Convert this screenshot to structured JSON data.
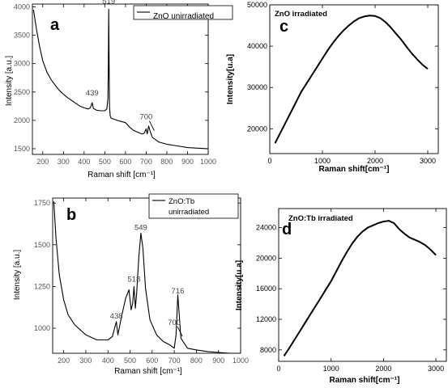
{
  "chart_data": [
    {
      "panel_letter": "a",
      "type": "line",
      "legend": "ZnO unirradiated",
      "xlabel": "Raman shift [cm⁻¹]",
      "ylabel": "Intensity [a.u.]",
      "xlim": [
        150,
        1000
      ],
      "ylim": [
        1400,
        4050
      ],
      "xticks": [
        200,
        300,
        400,
        500,
        600,
        700,
        800,
        900,
        1000
      ],
      "yticks": [
        1500,
        2000,
        2500,
        3000,
        3500,
        4000
      ],
      "annotations": [
        {
          "text": "519",
          "x": 519,
          "y": 4000
        },
        {
          "text": "439",
          "x": 439,
          "y": 2380
        },
        {
          "text": "700",
          "x": 700,
          "y": 1960
        }
      ],
      "series": [
        {
          "x": [
            155,
            170,
            185,
            200,
            220,
            240,
            260,
            280,
            300,
            320,
            340,
            360,
            380,
            400,
            420,
            430,
            439,
            445,
            460,
            480,
            500,
            510,
            515,
            517,
            519,
            521,
            523,
            526,
            530,
            545,
            560,
            580,
            600,
            620,
            640,
            660,
            680,
            690,
            700,
            705,
            712,
            720,
            730,
            760,
            800,
            850,
            900,
            950,
            1000
          ],
          "values": [
            3950,
            3600,
            3300,
            3050,
            2850,
            2720,
            2620,
            2530,
            2460,
            2400,
            2350,
            2300,
            2250,
            2220,
            2200,
            2220,
            2310,
            2210,
            2180,
            2170,
            2170,
            2200,
            2380,
            2900,
            3960,
            3000,
            2250,
            2080,
            2040,
            2020,
            2000,
            1980,
            1960,
            1880,
            1820,
            1790,
            1760,
            1770,
            1850,
            1760,
            1900,
            1800,
            1700,
            1620,
            1580,
            1550,
            1520,
            1510,
            1500
          ]
        }
      ]
    },
    {
      "panel_letter": "b",
      "type": "line",
      "legend": [
        "ZnO:Tb",
        "unirradiated"
      ],
      "xlabel": "Raman shift [cm⁻¹]",
      "ylabel": "Intensity [a.u.]",
      "xlim": [
        150,
        1000
      ],
      "ylim": [
        850,
        1780
      ],
      "xticks": [
        200,
        300,
        400,
        500,
        600,
        700,
        800,
        900,
        1000
      ],
      "yticks": [
        1000,
        1250,
        1500,
        1750
      ],
      "annotations": [
        {
          "text": "438",
          "x": 438,
          "y": 1040
        },
        {
          "text": "518",
          "x": 518,
          "y": 1260
        },
        {
          "text": "549",
          "x": 549,
          "y": 1570
        },
        {
          "text": "700",
          "x": 700,
          "y": 1000
        },
        {
          "text": "716",
          "x": 716,
          "y": 1190
        }
      ],
      "series": [
        {
          "x": [
            155,
            165,
            180,
            200,
            220,
            250,
            300,
            350,
            400,
            420,
            438,
            445,
            460,
            480,
            495,
            505,
            512,
            518,
            524,
            530,
            540,
            549,
            558,
            570,
            590,
            620,
            650,
            680,
            700,
            708,
            716,
            722,
            730,
            760,
            800,
            850,
            900,
            950,
            1000
          ],
          "values": [
            1760,
            1540,
            1320,
            1170,
            1080,
            1020,
            960,
            930,
            930,
            950,
            1040,
            960,
            1060,
            1180,
            1230,
            1110,
            1150,
            1250,
            1120,
            1210,
            1430,
            1570,
            1480,
            1240,
            1050,
            960,
            920,
            900,
            880,
            960,
            1200,
            1090,
            940,
            880,
            870,
            860,
            855,
            850,
            850
          ]
        }
      ]
    },
    {
      "panel_letter": "c",
      "type": "line",
      "legend": "ZnO irradiated",
      "xlabel": "Raman shift[cm⁻¹]",
      "ylabel": "Intensity[u.a]",
      "xlim": [
        0,
        3200
      ],
      "ylim": [
        14000,
        50000
      ],
      "xticks": [
        0,
        1000,
        2000,
        3000
      ],
      "yticks": [
        20000,
        30000,
        40000,
        50000
      ],
      "series": [
        {
          "x": [
            100,
            200,
            300,
            400,
            500,
            600,
            700,
            800,
            900,
            1000,
            1100,
            1200,
            1300,
            1400,
            1500,
            1600,
            1700,
            1800,
            1900,
            2000,
            2100,
            2200,
            2300,
            2400,
            2500,
            2600,
            2700,
            2800,
            2900,
            3000
          ],
          "values": [
            16500,
            19000,
            21500,
            24000,
            26500,
            29000,
            31000,
            33000,
            35000,
            37000,
            39000,
            40800,
            42400,
            43800,
            45000,
            46000,
            46800,
            47200,
            47400,
            47300,
            46800,
            45800,
            44500,
            43000,
            41500,
            39800,
            38200,
            36800,
            35500,
            34500
          ]
        }
      ]
    },
    {
      "panel_letter": "d",
      "type": "line",
      "legend": "ZnO:Tb  irradiated",
      "xlabel": "Raman shift[cm⁻¹]",
      "ylabel": "Intensity[u.a]",
      "xlim": [
        0,
        3200
      ],
      "ylim": [
        6500,
        26500
      ],
      "xticks": [
        0,
        1000,
        2000,
        3000
      ],
      "yticks": [
        8000,
        12000,
        16000,
        20000,
        24000
      ],
      "series": [
        {
          "x": [
            100,
            200,
            300,
            400,
            500,
            600,
            700,
            800,
            900,
            1000,
            1100,
            1200,
            1300,
            1400,
            1500,
            1600,
            1700,
            1800,
            1900,
            2000,
            2100,
            2200,
            2300,
            2400,
            2500,
            2600,
            2700,
            2800,
            2900,
            3000
          ],
          "values": [
            7200,
            8200,
            9300,
            10400,
            11500,
            12600,
            13700,
            14800,
            15900,
            17000,
            18300,
            19600,
            20800,
            21900,
            22800,
            23500,
            24000,
            24300,
            24600,
            24800,
            24900,
            24600,
            23800,
            23200,
            22700,
            22400,
            22100,
            21700,
            21100,
            20400
          ]
        }
      ]
    }
  ]
}
